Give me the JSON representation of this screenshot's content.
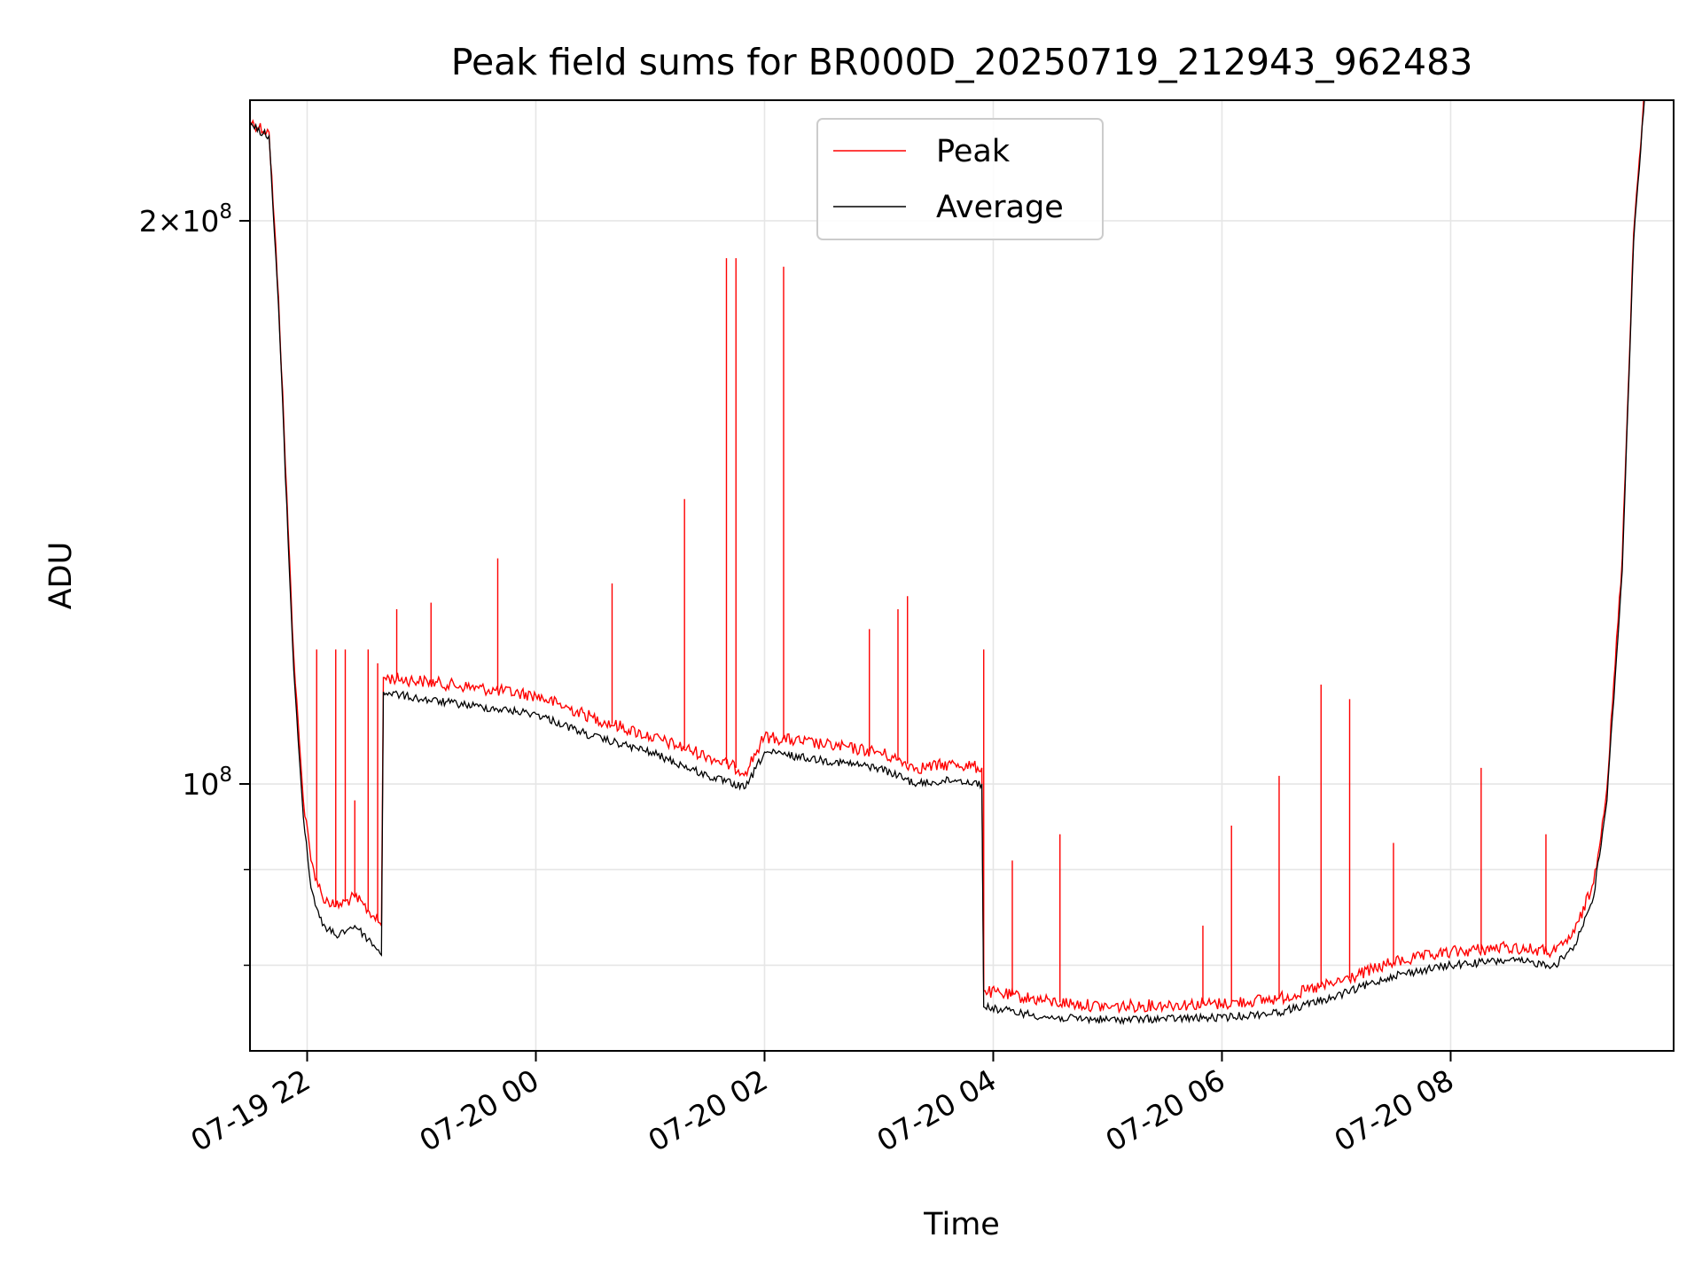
{
  "chart_data": {
    "type": "line",
    "title": "Peak field sums for BR000D_20250719_212943_962483",
    "xlabel": "Time",
    "ylabel": "ADU",
    "y_scale": "log",
    "xlim": [
      "2025-07-19T21:30",
      "2025-07-20T09:57"
    ],
    "ylim": [
      72000000,
      232000000
    ],
    "x_ticks": [
      "2025-07-19T22:00",
      "2025-07-20T00:00",
      "2025-07-20T02:00",
      "2025-07-20T04:00",
      "2025-07-20T06:00",
      "2025-07-20T08:00"
    ],
    "x_tick_labels": [
      "07-19 22",
      "07-20 00",
      "07-20 02",
      "07-20 04",
      "07-20 06",
      "07-20 08"
    ],
    "y_ticks_major": [
      100000000,
      200000000
    ],
    "y_tick_labels": [
      "10^8",
      "2×10^8"
    ],
    "y_ticks_minor": [
      80000000,
      90000000
    ],
    "grid": true,
    "legend_position": "top-center",
    "colors": {
      "Peak": "#ff0000",
      "Average": "#000000"
    },
    "series": [
      {
        "name": "Average",
        "x": [
          "2025-07-19T21:30",
          "2025-07-19T21:40",
          "2025-07-19T21:45",
          "2025-07-19T21:50",
          "2025-07-19T21:53",
          "2025-07-19T21:56",
          "2025-07-19T21:58",
          "2025-07-19T22:02",
          "2025-07-19T22:08",
          "2025-07-19T22:15",
          "2025-07-19T22:25",
          "2025-07-19T22:35",
          "2025-07-19T22:39",
          "2025-07-19T22:40",
          "2025-07-19T23:00",
          "2025-07-19T23:30",
          "2025-07-20T00:00",
          "2025-07-20T00:30",
          "2025-07-20T01:00",
          "2025-07-20T01:30",
          "2025-07-20T01:50",
          "2025-07-20T02:00",
          "2025-07-20T02:30",
          "2025-07-20T03:00",
          "2025-07-20T03:10",
          "2025-07-20T03:20",
          "2025-07-20T03:40",
          "2025-07-20T03:54",
          "2025-07-20T03:55",
          "2025-07-20T04:30",
          "2025-07-20T05:00",
          "2025-07-20T05:30",
          "2025-07-20T06:00",
          "2025-07-20T06:30",
          "2025-07-20T07:00",
          "2025-07-20T07:30",
          "2025-07-20T08:00",
          "2025-07-20T08:30",
          "2025-07-20T08:55",
          "2025-07-20T09:05",
          "2025-07-20T09:15",
          "2025-07-20T09:22",
          "2025-07-20T09:30",
          "2025-07-20T09:36",
          "2025-07-20T09:42"
        ],
        "y": [
          225000000,
          222000000,
          180000000,
          135000000,
          115000000,
          103000000,
          96000000,
          88000000,
          84000000,
          83000000,
          84000000,
          82000000,
          81000000,
          112000000,
          111000000,
          110000000,
          109000000,
          106000000,
          104000000,
          101000000,
          99500000,
          104000000,
          103000000,
          102000000,
          101000000,
          100000000,
          100500000,
          100000000,
          76000000,
          75000000,
          74800000,
          74900000,
          75000000,
          75500000,
          77000000,
          79000000,
          80000000,
          80500000,
          80000000,
          82000000,
          87000000,
          98000000,
          130000000,
          195000000,
          235000000
        ]
      },
      {
        "name": "Peak",
        "x": [
          "2025-07-19T21:30",
          "2025-07-19T21:40",
          "2025-07-19T21:45",
          "2025-07-19T21:50",
          "2025-07-19T21:53",
          "2025-07-19T21:56",
          "2025-07-19T21:58",
          "2025-07-19T22:02",
          "2025-07-19T22:08",
          "2025-07-19T22:15",
          "2025-07-19T22:25",
          "2025-07-19T22:35",
          "2025-07-19T22:39",
          "2025-07-19T22:40",
          "2025-07-19T23:00",
          "2025-07-19T23:30",
          "2025-07-20T00:00",
          "2025-07-20T00:30",
          "2025-07-20T01:00",
          "2025-07-20T01:30",
          "2025-07-20T01:50",
          "2025-07-20T02:00",
          "2025-07-20T02:30",
          "2025-07-20T03:00",
          "2025-07-20T03:10",
          "2025-07-20T03:20",
          "2025-07-20T03:40",
          "2025-07-20T03:54",
          "2025-07-20T03:55",
          "2025-07-20T04:30",
          "2025-07-20T05:00",
          "2025-07-20T05:30",
          "2025-07-20T06:00",
          "2025-07-20T06:30",
          "2025-07-20T07:00",
          "2025-07-20T07:30",
          "2025-07-20T08:00",
          "2025-07-20T08:30",
          "2025-07-20T08:55",
          "2025-07-20T09:05",
          "2025-07-20T09:15",
          "2025-07-20T09:22",
          "2025-07-20T09:30",
          "2025-07-20T09:36",
          "2025-07-20T09:42"
        ],
        "y": [
          226000000,
          223000000,
          182000000,
          137000000,
          117000000,
          105000000,
          98000000,
          91000000,
          87000000,
          86000000,
          87000000,
          85000000,
          84000000,
          114000000,
          113500000,
          112500000,
          111500000,
          108500000,
          106000000,
          103500000,
          101500000,
          106000000,
          105000000,
          104000000,
          103000000,
          102000000,
          102500000,
          102000000,
          77500000,
          76500000,
          76000000,
          76200000,
          76300000,
          76800000,
          78300000,
          80300000,
          81300000,
          81800000,
          81300000,
          83300000,
          88500000,
          99500000,
          132000000,
          197000000,
          237000000
        ]
      }
    ],
    "spikes": [
      {
        "x": "2025-07-19T22:05",
        "y": 118000000
      },
      {
        "x": "2025-07-19T22:15",
        "y": 118000000
      },
      {
        "x": "2025-07-19T22:20",
        "y": 118000000
      },
      {
        "x": "2025-07-19T22:25",
        "y": 98000000
      },
      {
        "x": "2025-07-19T22:32",
        "y": 118000000
      },
      {
        "x": "2025-07-19T22:37",
        "y": 116000000
      },
      {
        "x": "2025-07-19T22:47",
        "y": 124000000
      },
      {
        "x": "2025-07-19T23:05",
        "y": 125000000
      },
      {
        "x": "2025-07-19T23:40",
        "y": 132000000
      },
      {
        "x": "2025-07-20T00:40",
        "y": 128000000
      },
      {
        "x": "2025-07-20T01:18",
        "y": 142000000
      },
      {
        "x": "2025-07-20T01:40",
        "y": 191000000
      },
      {
        "x": "2025-07-20T01:45",
        "y": 191000000
      },
      {
        "x": "2025-07-20T02:10",
        "y": 189000000
      },
      {
        "x": "2025-07-20T02:55",
        "y": 121000000
      },
      {
        "x": "2025-07-20T03:10",
        "y": 124000000
      },
      {
        "x": "2025-07-20T03:15",
        "y": 126000000
      },
      {
        "x": "2025-07-20T03:55",
        "y": 118000000
      },
      {
        "x": "2025-07-20T04:10",
        "y": 91000000
      },
      {
        "x": "2025-07-20T04:35",
        "y": 94000000
      },
      {
        "x": "2025-07-20T05:50",
        "y": 84000000
      },
      {
        "x": "2025-07-20T06:05",
        "y": 95000000
      },
      {
        "x": "2025-07-20T06:30",
        "y": 101000000
      },
      {
        "x": "2025-07-20T06:52",
        "y": 113000000
      },
      {
        "x": "2025-07-20T07:07",
        "y": 111000000
      },
      {
        "x": "2025-07-20T07:30",
        "y": 93000000
      },
      {
        "x": "2025-07-20T08:16",
        "y": 102000000
      },
      {
        "x": "2025-07-20T08:50",
        "y": 94000000
      }
    ]
  }
}
